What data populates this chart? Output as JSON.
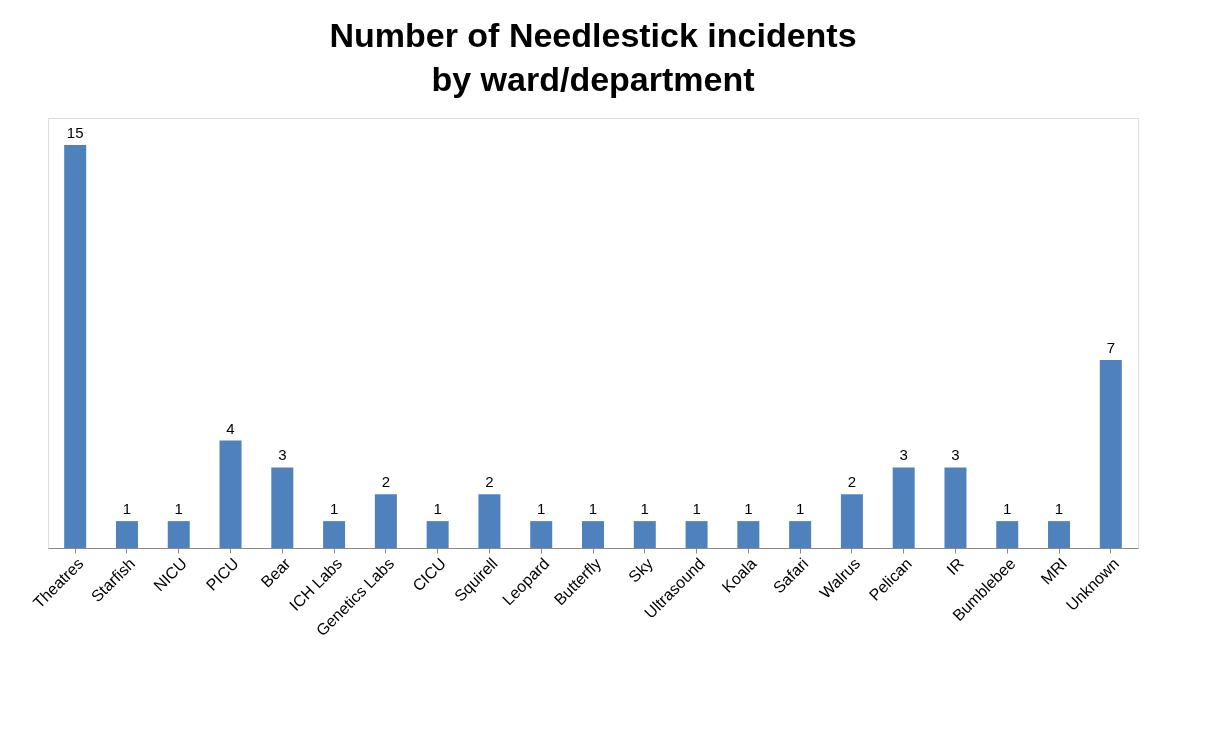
{
  "chart_data": {
    "type": "bar",
    "title": "Number of Needlestick incidents by ward/department",
    "categories": [
      "Theatres",
      "Starfish",
      "NICU",
      "PICU",
      "Bear",
      "ICH Labs",
      "Genetics Labs",
      "CICU",
      "Squirell",
      "Leopard",
      "Butterfly",
      "Sky",
      "Ultrasound",
      "Koala",
      "Safari",
      "Walrus",
      "Pelican",
      "IR",
      "Bumblebee",
      "MRI",
      "Unknown"
    ],
    "values": [
      15,
      1,
      1,
      4,
      3,
      1,
      2,
      1,
      2,
      1,
      1,
      1,
      1,
      1,
      1,
      2,
      3,
      3,
      1,
      1,
      7
    ],
    "color": "#4f81bd",
    "data_labels": true
  }
}
